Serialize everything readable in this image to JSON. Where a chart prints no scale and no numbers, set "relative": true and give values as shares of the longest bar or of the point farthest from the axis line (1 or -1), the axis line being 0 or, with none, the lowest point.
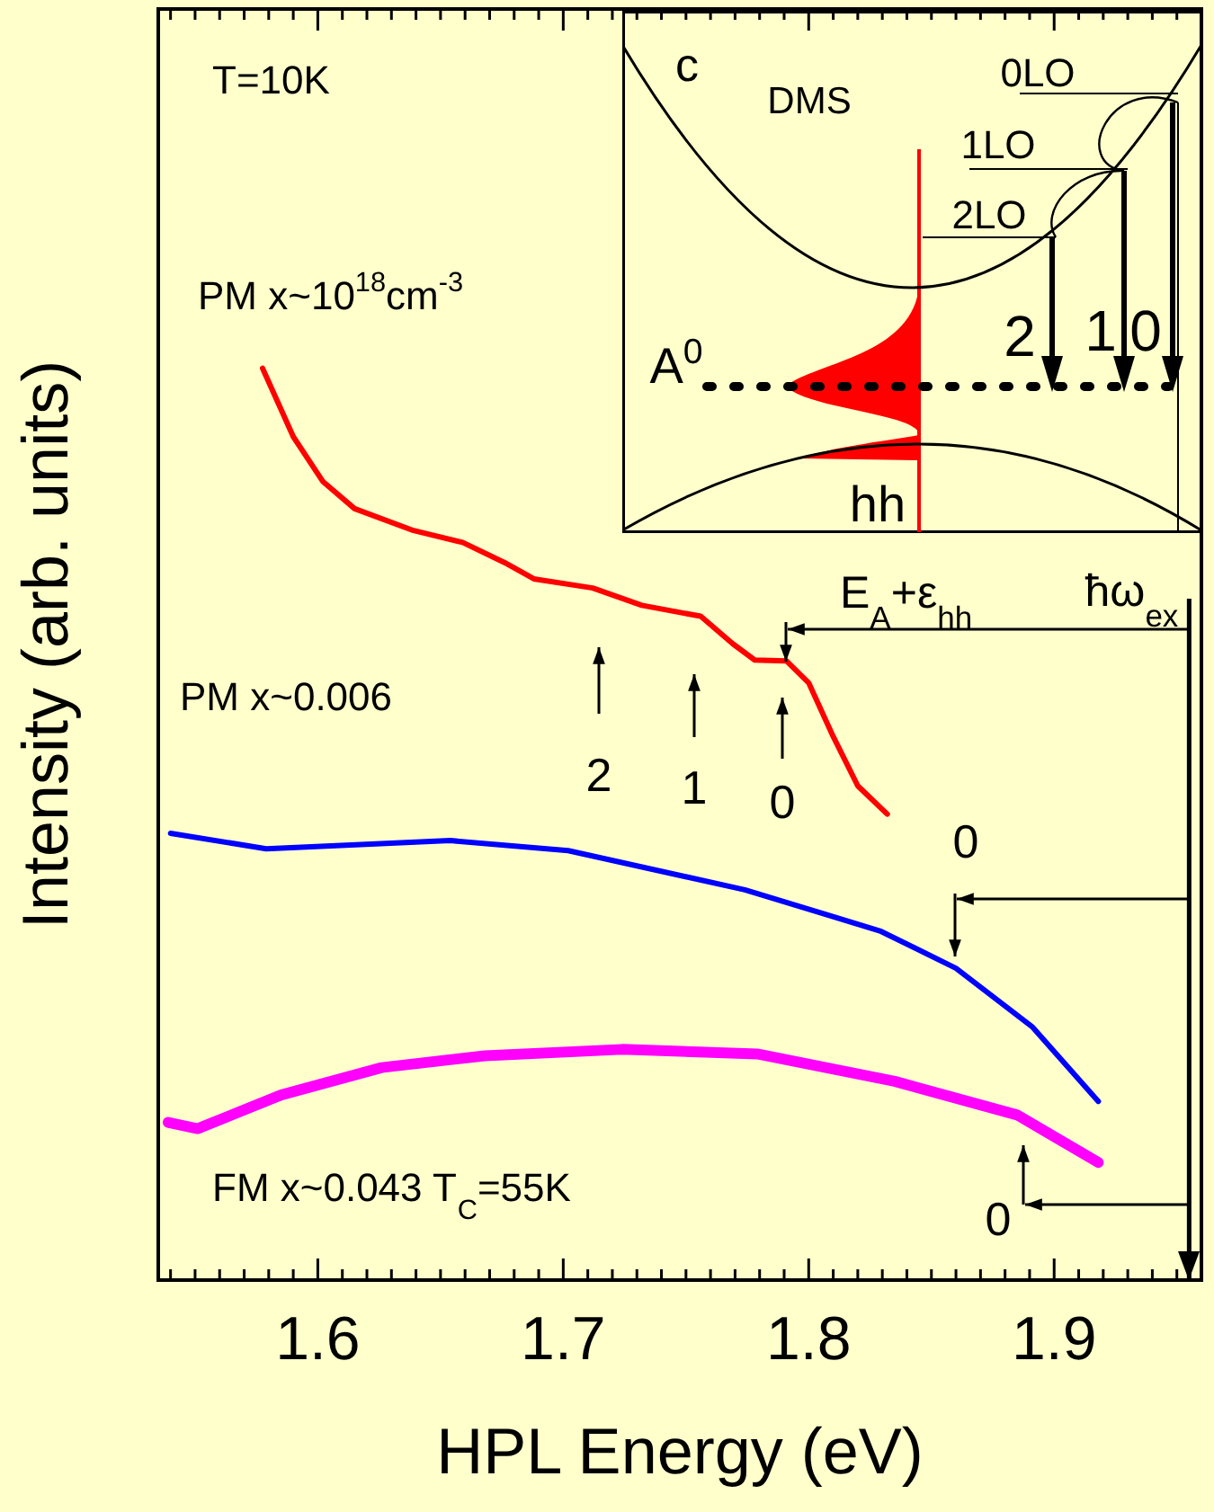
{
  "chart_data": {
    "type": "line",
    "relative": true,
    "xlabel": "HPL Energy (eV)",
    "ylabel": "Intensity (arb. units)",
    "xlim": [
      1.535,
      1.96
    ],
    "xticks": [
      {
        "value": 1.54,
        "label": null
      },
      {
        "value": 1.55,
        "label": null
      },
      {
        "value": 1.56,
        "label": null
      },
      {
        "value": 1.57,
        "label": null
      },
      {
        "value": 1.58,
        "label": null
      },
      {
        "value": 1.59,
        "label": null
      },
      1.6,
      {
        "value": 1.61,
        "label": null
      },
      {
        "value": 1.62,
        "label": null
      },
      {
        "value": 1.63,
        "label": null
      },
      {
        "value": 1.64,
        "label": null
      },
      {
        "value": 1.65,
        "label": null
      },
      {
        "value": 1.66,
        "label": null
      },
      {
        "value": 1.67,
        "label": null
      },
      {
        "value": 1.68,
        "label": null
      },
      {
        "value": 1.69,
        "label": null
      },
      1.7,
      {
        "value": 1.71,
        "label": null
      },
      {
        "value": 1.72,
        "label": null
      },
      {
        "value": 1.73,
        "label": null
      },
      {
        "value": 1.74,
        "label": null
      },
      {
        "value": 1.75,
        "label": null
      },
      {
        "value": 1.76,
        "label": null
      },
      {
        "value": 1.77,
        "label": null
      },
      {
        "value": 1.78,
        "label": null
      },
      {
        "value": 1.79,
        "label": null
      },
      1.8,
      {
        "value": 1.81,
        "label": null
      },
      {
        "value": 1.82,
        "label": null
      },
      {
        "value": 1.83,
        "label": null
      },
      {
        "value": 1.84,
        "label": null
      },
      {
        "value": 1.85,
        "label": null
      },
      {
        "value": 1.86,
        "label": null
      },
      {
        "value": 1.87,
        "label": null
      },
      {
        "value": 1.88,
        "label": null
      },
      {
        "value": 1.89,
        "label": null
      },
      1.9,
      {
        "value": 1.91,
        "label": null
      },
      {
        "value": 1.92,
        "label": null
      },
      {
        "value": 1.93,
        "label": null
      },
      {
        "value": 1.94,
        "label": null
      },
      {
        "value": 1.95,
        "label": null
      }
    ],
    "series": [
      {
        "name": "PM x~10$^{18}$cm$^{-3}$",
        "color": "#ff0000",
        "x": [
          1.5775,
          1.59,
          1.602,
          1.615,
          1.639,
          1.659,
          1.676,
          1.688,
          1.712,
          1.732,
          1.756,
          1.769,
          1.778,
          1.791,
          1.8,
          1.81,
          1.82,
          1.832
        ],
        "values": [
          1,
          0.925,
          0.876,
          0.846,
          0.822,
          0.809,
          0.787,
          0.769,
          0.759,
          0.74,
          0.728,
          0.698,
          0.68,
          0.679,
          0.655,
          0.596,
          0.542,
          0.511
        ]
      },
      {
        "name": "PM x~0.006",
        "color": "#0000ff",
        "x": [
          1.54,
          1.579,
          1.654,
          1.702,
          1.774,
          1.829,
          1.86,
          1.891,
          1.918
        ],
        "values": [
          0.49,
          0.473,
          0.482,
          0.471,
          0.428,
          0.383,
          0.342,
          0.278,
          0.196
        ]
      },
      {
        "name": "FM x~0.043 T$_{C}$=55K",
        "color": "#ff00ff",
        "x": [
          1.539,
          1.551,
          1.585,
          1.626,
          1.668,
          1.724,
          1.779,
          1.835,
          1.885,
          1.918
        ],
        "values": [
          0.173,
          0.166,
          0.203,
          0.233,
          0.246,
          0.253,
          0.248,
          0.218,
          0.181,
          0.129
        ]
      }
    ],
    "ref_lines": [
      {
        "axis": "x",
        "value": 1.955,
        "label": "ħω$_{ex}$"
      }
    ],
    "annotations": [
      "T=10K",
      "E$_{A}$+ε$_{hh}$",
      "2",
      "1",
      "0",
      "0",
      "0",
      "c",
      "DMS",
      "A$^{0}$",
      "hh",
      "0LO",
      "1LO",
      "2LO",
      "2",
      "1",
      "0"
    ],
    "legend": false,
    "grid": false,
    "marker": "none",
    "line_style": "solid"
  }
}
